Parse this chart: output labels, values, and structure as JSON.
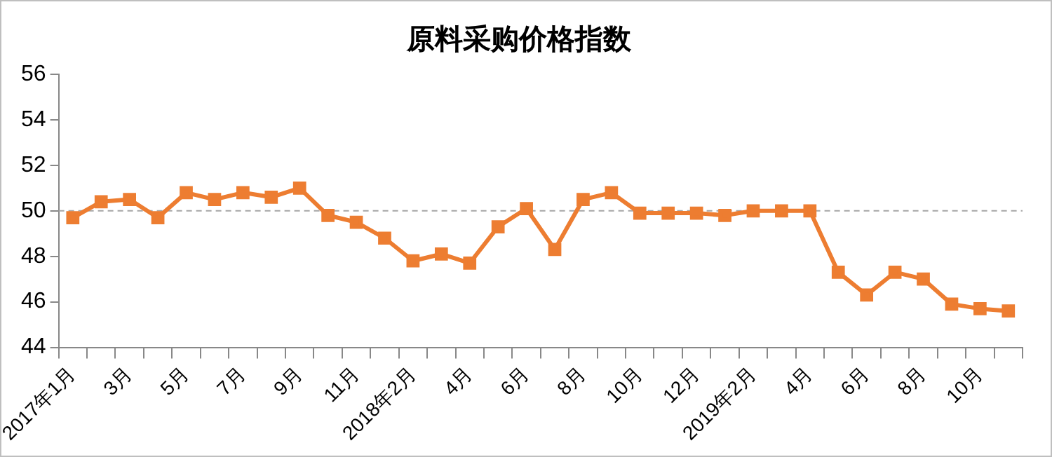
{
  "chart_data": {
    "type": "line",
    "title": "原料采购价格指数",
    "categories": [
      "2017年1月",
      null,
      "3月",
      null,
      "5月",
      null,
      "7月",
      null,
      "9月",
      null,
      "11月",
      null,
      "2018年2月",
      null,
      "4月",
      null,
      "6月",
      null,
      "8月",
      null,
      "10月",
      null,
      "12月",
      null,
      "2019年2月",
      null,
      "4月",
      null,
      "6月",
      null,
      "8月",
      null,
      "10月",
      null
    ],
    "series": [
      {
        "color": "#ed7d31",
        "values": [
          49.7,
          50.4,
          50.5,
          49.7,
          50.8,
          50.5,
          50.8,
          50.6,
          51.0,
          49.8,
          49.5,
          48.8,
          47.8,
          48.1,
          47.7,
          49.3,
          50.1,
          48.3,
          50.5,
          50.8,
          49.9,
          49.9,
          49.9,
          49.8,
          50.0,
          50.0,
          50.0,
          47.3,
          46.3,
          47.3,
          47.0,
          45.9,
          45.7,
          45.6
        ]
      }
    ],
    "ylim": [
      44,
      56
    ],
    "yticks": [
      44,
      46,
      48,
      50,
      52,
      54,
      56
    ],
    "grid": false,
    "legend": false,
    "marker": "square",
    "line_style": "solid",
    "ref_lines": [
      {
        "axis": "y",
        "value": 50,
        "color": "#a6a6a6",
        "line_style": "dashed"
      }
    ]
  }
}
